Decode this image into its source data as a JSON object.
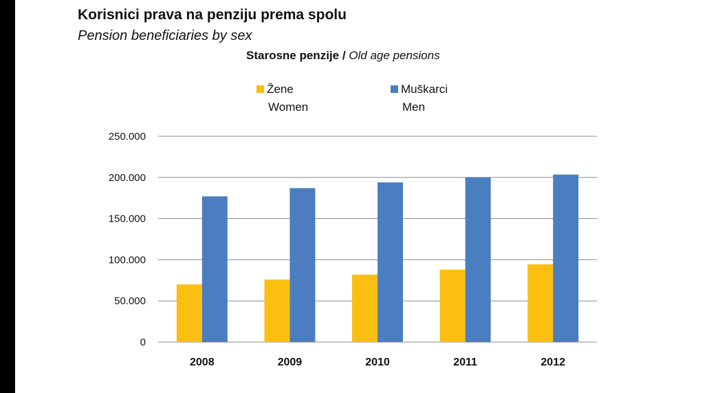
{
  "page": {
    "title": "Korisnici prava na penziju prema spolu",
    "subtitle": "Pension beneficiaries by sex"
  },
  "colors": {
    "women": "#FBBF12",
    "men": "#4A7EC0",
    "grid": "#8c8c8c",
    "sidebar": "#000000"
  },
  "chart_data": {
    "type": "bar",
    "title_bold": "Starosne penzije /",
    "title_italic": "Old age pensions",
    "categories": [
      "2008",
      "2009",
      "2010",
      "2011",
      "2012"
    ],
    "series": [
      {
        "name": "Žene",
        "name_en": "Women",
        "color": "#FBBF12",
        "values": [
          70000,
          76000,
          82000,
          88000,
          94500
        ]
      },
      {
        "name": "Muškarci",
        "name_en": "Men",
        "color": "#4A7EC0",
        "values": [
          177000,
          187000,
          194000,
          200000,
          203500
        ]
      }
    ],
    "yticks": [
      "0",
      "50.000",
      "100.000",
      "150.000",
      "200.000",
      "250.000"
    ],
    "ylim": [
      0,
      250000
    ],
    "ytick_step": 50000,
    "xlabel": "",
    "ylabel": "",
    "grid": true,
    "legend_position": "top"
  }
}
